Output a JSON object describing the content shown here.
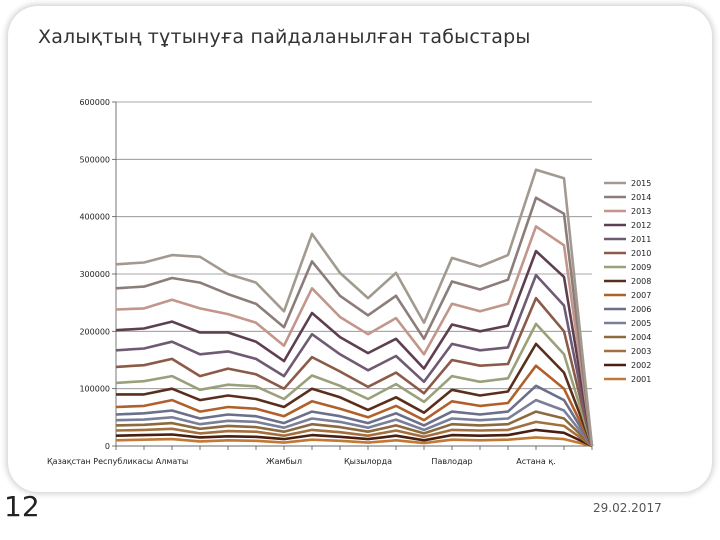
{
  "slide": {
    "title": "Халықтың тұтынуға пайдаланылған табыстары",
    "number": "12",
    "date": "29.02.2017"
  },
  "chart_data": {
    "type": "line",
    "ylim": [
      0,
      600000
    ],
    "yticks": [
      0,
      100000,
      200000,
      300000,
      400000,
      500000,
      600000
    ],
    "ytick_labels": [
      "0",
      "100000",
      "200000",
      "300000",
      "400000",
      "500000",
      "600000"
    ],
    "grid": true,
    "legend_position": "right",
    "x_labels_shown": [
      "Қазақстан Республикасы",
      "Алматы",
      "Жамбыл",
      "Қызылорда",
      "Павлодар",
      "Астана қ."
    ],
    "x_label_positions": [
      0,
      2,
      6,
      9,
      12,
      15
    ],
    "point_count": 18,
    "series": [
      {
        "name": "2015",
        "color": "#a39a8f",
        "values": [
          317000,
          320000,
          333000,
          330000,
          300000,
          285000,
          235000,
          370000,
          302000,
          258000,
          302000,
          215000,
          328000,
          313000,
          333000,
          482000,
          467000,
          0
        ]
      },
      {
        "name": "2014",
        "color": "#8c7d7a",
        "values": [
          275000,
          278000,
          293000,
          285000,
          265000,
          248000,
          207000,
          322000,
          262000,
          228000,
          262000,
          187000,
          287000,
          273000,
          290000,
          433000,
          405000,
          0
        ]
      },
      {
        "name": "2013",
        "color": "#c2968a",
        "values": [
          238000,
          240000,
          255000,
          240000,
          230000,
          215000,
          175000,
          275000,
          225000,
          195000,
          223000,
          160000,
          248000,
          235000,
          248000,
          383000,
          350000,
          0
        ]
      },
      {
        "name": "2012",
        "color": "#5e3f4f",
        "values": [
          202000,
          205000,
          217000,
          198000,
          198000,
          182000,
          148000,
          232000,
          190000,
          162000,
          187000,
          135000,
          212000,
          200000,
          210000,
          340000,
          295000,
          0
        ]
      },
      {
        "name": "2011",
        "color": "#6e5b73",
        "values": [
          167000,
          170000,
          182000,
          160000,
          165000,
          152000,
          122000,
          195000,
          160000,
          132000,
          157000,
          112000,
          178000,
          167000,
          172000,
          298000,
          245000,
          0
        ]
      },
      {
        "name": "2010",
        "color": "#8c5a48",
        "values": [
          138000,
          141000,
          152000,
          122000,
          135000,
          125000,
          100000,
          155000,
          130000,
          103000,
          128000,
          92000,
          150000,
          140000,
          143000,
          258000,
          200000,
          0
        ]
      },
      {
        "name": "2009",
        "color": "#9aa17a",
        "values": [
          110000,
          113000,
          122000,
          98000,
          107000,
          104000,
          82000,
          123000,
          105000,
          82000,
          108000,
          77000,
          122000,
          112000,
          118000,
          213000,
          160000,
          0
        ]
      },
      {
        "name": "2008",
        "color": "#5a2e1c",
        "values": [
          90000,
          90000,
          100000,
          80000,
          88000,
          82000,
          68000,
          100000,
          85000,
          63000,
          85000,
          58000,
          98000,
          88000,
          95000,
          178000,
          128000,
          0
        ]
      },
      {
        "name": "2007",
        "color": "#b0602a",
        "values": [
          68000,
          70000,
          80000,
          60000,
          68000,
          65000,
          52000,
          78000,
          65000,
          50000,
          70000,
          45000,
          78000,
          70000,
          75000,
          140000,
          100000,
          0
        ]
      },
      {
        "name": "2006",
        "color": "#6b6f8a",
        "values": [
          55000,
          57000,
          62000,
          48000,
          55000,
          52000,
          40000,
          60000,
          52000,
          40000,
          57000,
          36000,
          60000,
          55000,
          60000,
          105000,
          80000,
          0
        ]
      },
      {
        "name": "2005",
        "color": "#7a7f99",
        "values": [
          45000,
          46000,
          50000,
          38000,
          44000,
          42000,
          32000,
          48000,
          42000,
          32000,
          46000,
          28000,
          48000,
          45000,
          48000,
          80000,
          62000,
          0
        ]
      },
      {
        "name": "2004",
        "color": "#8d6a3d",
        "values": [
          36000,
          37000,
          40000,
          30000,
          35000,
          33000,
          25000,
          38000,
          33000,
          25000,
          36000,
          22000,
          38000,
          36000,
          38000,
          60000,
          48000,
          0
        ]
      },
      {
        "name": "2003",
        "color": "#a26f3e",
        "values": [
          27000,
          28000,
          30000,
          22000,
          26000,
          25000,
          18000,
          28000,
          24000,
          18000,
          27000,
          16000,
          28000,
          27000,
          28000,
          42000,
          35000,
          0
        ]
      },
      {
        "name": "2002",
        "color": "#4a1e10",
        "values": [
          18000,
          19000,
          20000,
          15000,
          17000,
          16000,
          12000,
          19000,
          16000,
          12000,
          18000,
          10000,
          19000,
          18000,
          19000,
          28000,
          23000,
          0
        ]
      },
      {
        "name": "2001",
        "color": "#c07a35",
        "values": [
          10000,
          11000,
          12000,
          8000,
          10000,
          9000,
          6000,
          11000,
          9000,
          6000,
          10000,
          5000,
          11000,
          10000,
          11000,
          15000,
          12000,
          0
        ]
      }
    ]
  }
}
